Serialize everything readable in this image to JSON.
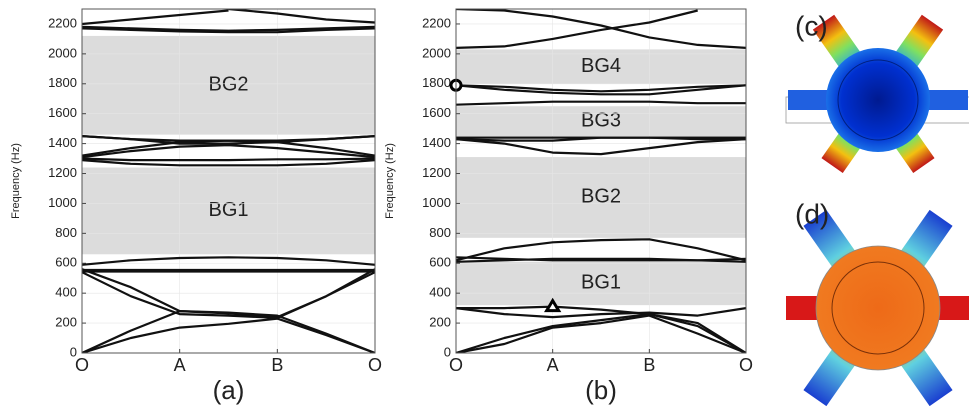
{
  "chart_data": [
    {
      "type": "line",
      "label": "(a)",
      "y_label": "Frequency (Hz)",
      "x": [
        0,
        0.5,
        1,
        1.5,
        2,
        2.5,
        3
      ],
      "xlim": [
        0,
        3
      ],
      "xticks": [
        {
          "value": 0,
          "label": "O"
        },
        {
          "value": 1,
          "label": "A"
        },
        {
          "value": 2,
          "label": "B"
        },
        {
          "value": 3,
          "label": "O"
        }
      ],
      "ylim": [
        0,
        2300
      ],
      "yticks": [
        0,
        200,
        400,
        600,
        800,
        1000,
        1200,
        1400,
        1600,
        1800,
        2000,
        2200
      ],
      "grid": true,
      "color": "#111111",
      "gap_color": "#dcdcdc",
      "bandgaps": [
        {
          "label": "BG1",
          "from": 660,
          "to": 1240
        },
        {
          "label": "BG2",
          "from": 1460,
          "to": 2120
        }
      ],
      "series": [
        {
          "values": [
            0,
            150,
            280,
            265,
            240,
            380,
            560
          ]
        },
        {
          "values": [
            0,
            100,
            170,
            195,
            230,
            120,
            0
          ]
        },
        {
          "values": [
            540,
            380,
            260,
            250,
            235,
            380,
            540
          ]
        },
        {
          "values": [
            560,
            440,
            280,
            270,
            250,
            130,
            0
          ]
        },
        {
          "values": [
            545,
            545,
            545,
            545,
            545,
            545,
            545
          ]
        },
        {
          "values": [
            555,
            555,
            555,
            555,
            555,
            555,
            555
          ]
        },
        {
          "values": [
            590,
            620,
            635,
            640,
            635,
            620,
            590
          ]
        },
        {
          "values": [
            1290,
            1265,
            1255,
            1255,
            1255,
            1265,
            1290
          ]
        },
        {
          "values": [
            1300,
            1290,
            1290,
            1290,
            1295,
            1295,
            1300
          ]
        },
        {
          "values": [
            1310,
            1350,
            1380,
            1390,
            1370,
            1340,
            1310
          ]
        },
        {
          "values": [
            1320,
            1370,
            1410,
            1420,
            1410,
            1370,
            1320
          ]
        },
        {
          "values": [
            1450,
            1430,
            1420,
            1420,
            1420,
            1430,
            1450
          ]
        },
        {
          "values": [
            1450,
            1430,
            1400,
            1400,
            1410,
            1430,
            1450
          ]
        },
        {
          "values": [
            2170,
            2160,
            2150,
            2145,
            2145,
            2160,
            2170
          ]
        },
        {
          "values": [
            2180,
            2170,
            2160,
            2155,
            2160,
            2170,
            2180
          ]
        },
        {
          "values": [
            2200,
            2230,
            2260,
            2290,
            null,
            null,
            null
          ]
        },
        {
          "values": [
            null,
            null,
            null,
            2300,
            2270,
            2230,
            2210
          ]
        }
      ]
    },
    {
      "type": "line",
      "label": "(b)",
      "y_label": "Frequency (Hz)",
      "x": [
        0,
        0.5,
        1,
        1.5,
        2,
        2.5,
        3
      ],
      "xlim": [
        0,
        3
      ],
      "xticks": [
        {
          "value": 0,
          "label": "O"
        },
        {
          "value": 1,
          "label": "A"
        },
        {
          "value": 2,
          "label": "B"
        },
        {
          "value": 3,
          "label": "O"
        }
      ],
      "ylim": [
        0,
        2300
      ],
      "yticks": [
        0,
        200,
        400,
        600,
        800,
        1000,
        1200,
        1400,
        1600,
        1800,
        2000,
        2200
      ],
      "grid": true,
      "color": "#111111",
      "gap_color": "#dcdcdc",
      "bandgaps": [
        {
          "label": "BG1",
          "from": 320,
          "to": 610
        },
        {
          "label": "BG2",
          "from": 770,
          "to": 1310
        },
        {
          "label": "BG3",
          "from": 1450,
          "to": 1650
        },
        {
          "label": "BG4",
          "from": 1800,
          "to": 2030
        }
      ],
      "markers": [
        {
          "x": 0,
          "y": 1790,
          "shape": "circle"
        },
        {
          "x": 1,
          "y": 310,
          "shape": "triangle"
        }
      ],
      "series": [
        {
          "values": [
            0,
            100,
            180,
            220,
            260,
            180,
            0
          ]
        },
        {
          "values": [
            0,
            60,
            170,
            200,
            250,
            130,
            0
          ]
        },
        {
          "values": [
            300,
            260,
            240,
            260,
            270,
            250,
            300
          ]
        },
        {
          "values": [
            300,
            300,
            310,
            290,
            260,
            200,
            0
          ]
        },
        {
          "values": [
            610,
            620,
            630,
            630,
            630,
            620,
            610
          ]
        },
        {
          "values": [
            620,
            700,
            740,
            755,
            760,
            700,
            620
          ]
        },
        {
          "values": [
            640,
            630,
            620,
            620,
            620,
            620,
            630
          ]
        },
        {
          "values": [
            1430,
            1400,
            1340,
            1330,
            1370,
            1410,
            1430
          ]
        },
        {
          "values": [
            1430,
            1420,
            1420,
            1440,
            1440,
            1430,
            1430
          ]
        },
        {
          "values": [
            1440,
            1440,
            1440,
            1440,
            1440,
            1440,
            1440
          ]
        },
        {
          "values": [
            1660,
            1670,
            1680,
            1680,
            1680,
            1670,
            1670
          ]
        },
        {
          "values": [
            1790,
            1760,
            1740,
            1730,
            1730,
            1760,
            1790
          ]
        },
        {
          "values": [
            1790,
            1780,
            1760,
            1750,
            1760,
            1780,
            1790
          ]
        },
        {
          "values": [
            2040,
            2050,
            2100,
            2160,
            2210,
            2290,
            null
          ]
        },
        {
          "values": [
            2300,
            2290,
            2250,
            2190,
            2110,
            2060,
            2040
          ]
        }
      ]
    }
  ],
  "panels": [
    {
      "label": "(c)"
    },
    {
      "label": "(d)"
    }
  ]
}
